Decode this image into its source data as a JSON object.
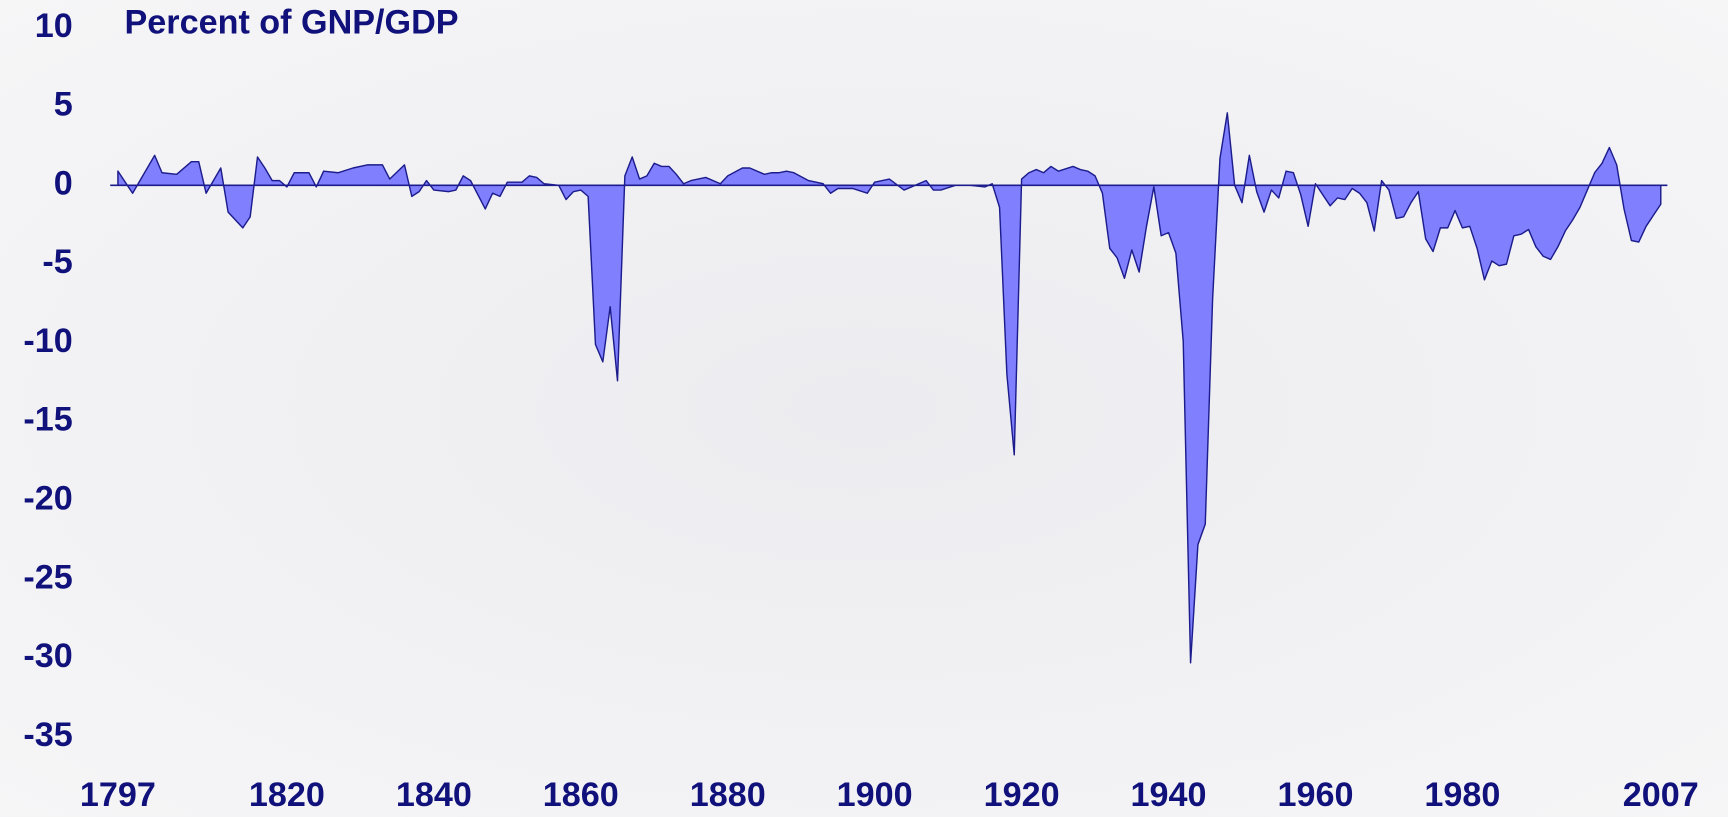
{
  "chart_data": {
    "type": "area",
    "title": "Percent of GNP/GDP",
    "x": [
      1797,
      1799,
      1802,
      1803,
      1805,
      1807,
      1808,
      1809,
      1811,
      1812,
      1814,
      1815,
      1816,
      1817,
      1818,
      1819,
      1820,
      1821,
      1823,
      1824,
      1825,
      1827,
      1829,
      1831,
      1833,
      1834,
      1836,
      1837,
      1838,
      1839,
      1840,
      1842,
      1843,
      1844,
      1845,
      1847,
      1848,
      1849,
      1850,
      1852,
      1853,
      1854,
      1855,
      1857,
      1858,
      1859,
      1860,
      1861,
      1862,
      1863,
      1864,
      1865,
      1866,
      1867,
      1868,
      1869,
      1870,
      1871,
      1872,
      1873,
      1874,
      1875,
      1877,
      1879,
      1880,
      1882,
      1883,
      1885,
      1886,
      1887,
      1888,
      1889,
      1891,
      1893,
      1894,
      1895,
      1897,
      1899,
      1900,
      1902,
      1904,
      1905,
      1907,
      1908,
      1909,
      1911,
      1913,
      1915,
      1916,
      1917,
      1918,
      1919,
      1920,
      1921,
      1922,
      1923,
      1924,
      1925,
      1927,
      1928,
      1929,
      1930,
      1931,
      1932,
      1933,
      1934,
      1935,
      1936,
      1937,
      1938,
      1939,
      1940,
      1941,
      1942,
      1943,
      1944,
      1945,
      1946,
      1947,
      1948,
      1949,
      1950,
      1951,
      1952,
      1953,
      1954,
      1955,
      1956,
      1957,
      1958,
      1959,
      1960,
      1961,
      1962,
      1963,
      1964,
      1965,
      1966,
      1967,
      1968,
      1969,
      1970,
      1971,
      1972,
      1973,
      1974,
      1975,
      1976,
      1977,
      1978,
      1979,
      1980,
      1981,
      1982,
      1983,
      1984,
      1985,
      1986,
      1987,
      1988,
      1989,
      1990,
      1991,
      1992,
      1993,
      1994,
      1995,
      1996,
      1997,
      1998,
      1999,
      2000,
      2001,
      2002,
      2003,
      2004,
      2005,
      2006,
      2007
    ],
    "values": [
      0.9,
      -0.5,
      1.9,
      0.8,
      0.7,
      1.5,
      1.5,
      -0.5,
      1.1,
      -1.7,
      -2.7,
      -2.0,
      1.8,
      1.1,
      0.3,
      0.3,
      -0.1,
      0.8,
      0.8,
      -0.1,
      0.9,
      0.8,
      1.1,
      1.3,
      1.3,
      0.4,
      1.3,
      -0.7,
      -0.4,
      0.3,
      -0.3,
      -0.4,
      -0.3,
      0.6,
      0.3,
      -1.5,
      -0.5,
      -0.7,
      0.2,
      0.2,
      0.6,
      0.5,
      0.1,
      0,
      -0.9,
      -0.4,
      -0.3,
      -0.7,
      -10.1,
      -11.2,
      -7.7,
      -12.4,
      0.6,
      1.8,
      0.4,
      0.6,
      1.4,
      1.2,
      1.2,
      0.7,
      0.1,
      0.3,
      0.5,
      0.1,
      0.6,
      1.1,
      1.1,
      0.7,
      0.8,
      0.8,
      0.9,
      0.8,
      0.3,
      0.1,
      -0.5,
      -0.2,
      -0.2,
      -0.5,
      0.2,
      0.4,
      -0.3,
      -0.1,
      0.3,
      -0.3,
      -0.3,
      0,
      0,
      -0.1,
      0.1,
      -1.4,
      -12.0,
      -17.1,
      0.4,
      0.8,
      1.0,
      0.8,
      1.2,
      0.9,
      1.2,
      1.0,
      0.9,
      0.6,
      -0.5,
      -4.0,
      -4.6,
      -5.9,
      -4.1,
      -5.5,
      -2.6,
      -0.1,
      -3.2,
      -3.0,
      -4.3,
      -9.9,
      -30.3,
      -22.8,
      -21.5,
      -7.2,
      1.7,
      4.6,
      0,
      -1.1,
      1.9,
      -0.4,
      -1.7,
      -0.3,
      -0.8,
      0.9,
      0.8,
      -0.6,
      -2.6,
      0.1,
      -0.6,
      -1.3,
      -0.8,
      -0.9,
      -0.2,
      -0.5,
      -1.1,
      -2.9,
      0.3,
      -0.3,
      -2.1,
      -2.0,
      -1.1,
      -0.4,
      -3.4,
      -4.2,
      -2.7,
      -2.7,
      -1.6,
      -2.7,
      -2.6,
      -4.0,
      -6.0,
      -4.8,
      -5.1,
      -5.0,
      -3.2,
      -3.1,
      -2.8,
      -3.9,
      -4.5,
      -4.7,
      -3.9,
      -2.9,
      -2.2,
      -1.4,
      -0.3,
      0.8,
      1.4,
      2.4,
      1.3,
      -1.5,
      -3.5,
      -3.6,
      -2.6,
      -1.9,
      -1.2
    ],
    "color": "#8080ff",
    "xlim": [
      1797,
      2007
    ],
    "xticks": [
      1797,
      1820,
      1840,
      1860,
      1880,
      1900,
      1920,
      1940,
      1960,
      1980,
      2007
    ],
    "ylim": [
      -35,
      10
    ],
    "yticks": [
      10,
      5,
      0,
      -5,
      -10,
      -15,
      -20,
      -25,
      -30,
      -35
    ]
  }
}
